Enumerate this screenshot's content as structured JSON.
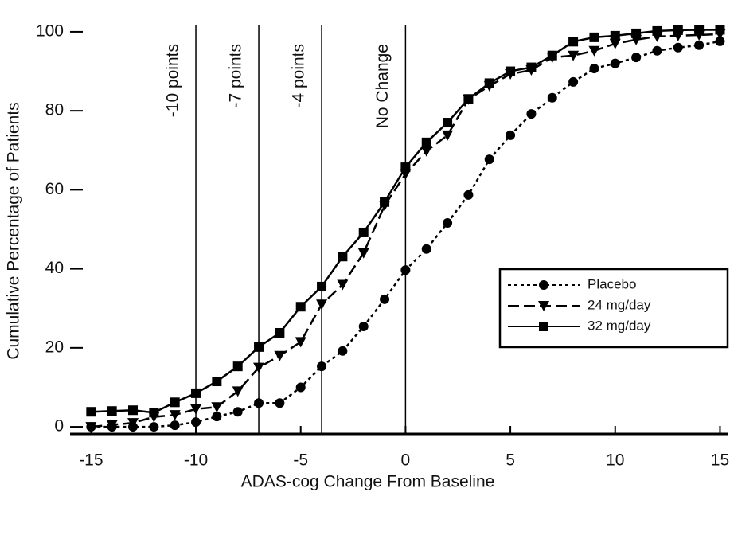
{
  "chart_data": {
    "type": "line",
    "xlabel": "ADAS-cog Change From Baseline",
    "ylabel": "Cumulative Percentage of Patients",
    "x": [
      -15,
      -14,
      -13,
      -12,
      -11,
      -10,
      -9,
      -8,
      -7,
      -6,
      -5,
      -4,
      -3,
      -2,
      -1,
      0,
      1,
      2,
      3,
      4,
      5,
      6,
      7,
      8,
      9,
      10,
      11,
      12,
      13,
      14,
      15
    ],
    "series": [
      {
        "name": "Placebo",
        "color": "#000000",
        "marker": "circle",
        "dash": "dotted",
        "values": [
          0,
          0,
          0,
          0,
          0.4,
          1.2,
          2.6,
          3.8,
          6,
          6,
          10,
          15.3,
          19.2,
          25.4,
          32.3,
          39.7,
          45,
          51.6,
          58.7,
          67.7,
          73.8,
          79.2,
          83.3,
          87.3,
          90.7,
          92,
          93.5,
          95.2,
          96,
          96.6,
          97.6
        ]
      },
      {
        "name": "24 mg/day",
        "color": "#000000",
        "marker": "triangle-down",
        "dash": "dashed",
        "values": [
          0,
          0.5,
          1,
          2.5,
          3,
          4.5,
          5,
          9,
          15,
          18,
          21.5,
          31,
          36,
          44,
          56,
          64,
          69.8,
          73.8,
          82.9,
          86.3,
          89.3,
          90.3,
          93.5,
          94,
          95.2,
          97,
          98,
          98.8,
          99,
          99.2,
          99.4
        ]
      },
      {
        "name": "32 mg/day",
        "color": "#000000",
        "marker": "square",
        "dash": "solid",
        "values": [
          3.8,
          4,
          4.2,
          3.6,
          6.2,
          8.5,
          11.5,
          15.3,
          20.2,
          23.8,
          30.4,
          35.5,
          43.1,
          49.2,
          56.9,
          65.7,
          72,
          77,
          83,
          87,
          90,
          91,
          94,
          97.5,
          98.6,
          99,
          99.6,
          100.2,
          100.4,
          100.5,
          100.5
        ]
      }
    ],
    "reference_lines": [
      {
        "x": -10,
        "label": "-10 points"
      },
      {
        "x": -7,
        "label": "-7 points"
      },
      {
        "x": -4,
        "label": "-4 points"
      },
      {
        "x": 0,
        "label": "No Change"
      }
    ],
    "xlim": [
      -16,
      15.4
    ],
    "ylim": [
      -1.8,
      102
    ],
    "xticks": [
      -15,
      -10,
      -5,
      0,
      5,
      10,
      15
    ],
    "yticks": [
      0,
      20,
      40,
      60,
      80,
      100
    ],
    "grid": false,
    "legend": "right"
  }
}
